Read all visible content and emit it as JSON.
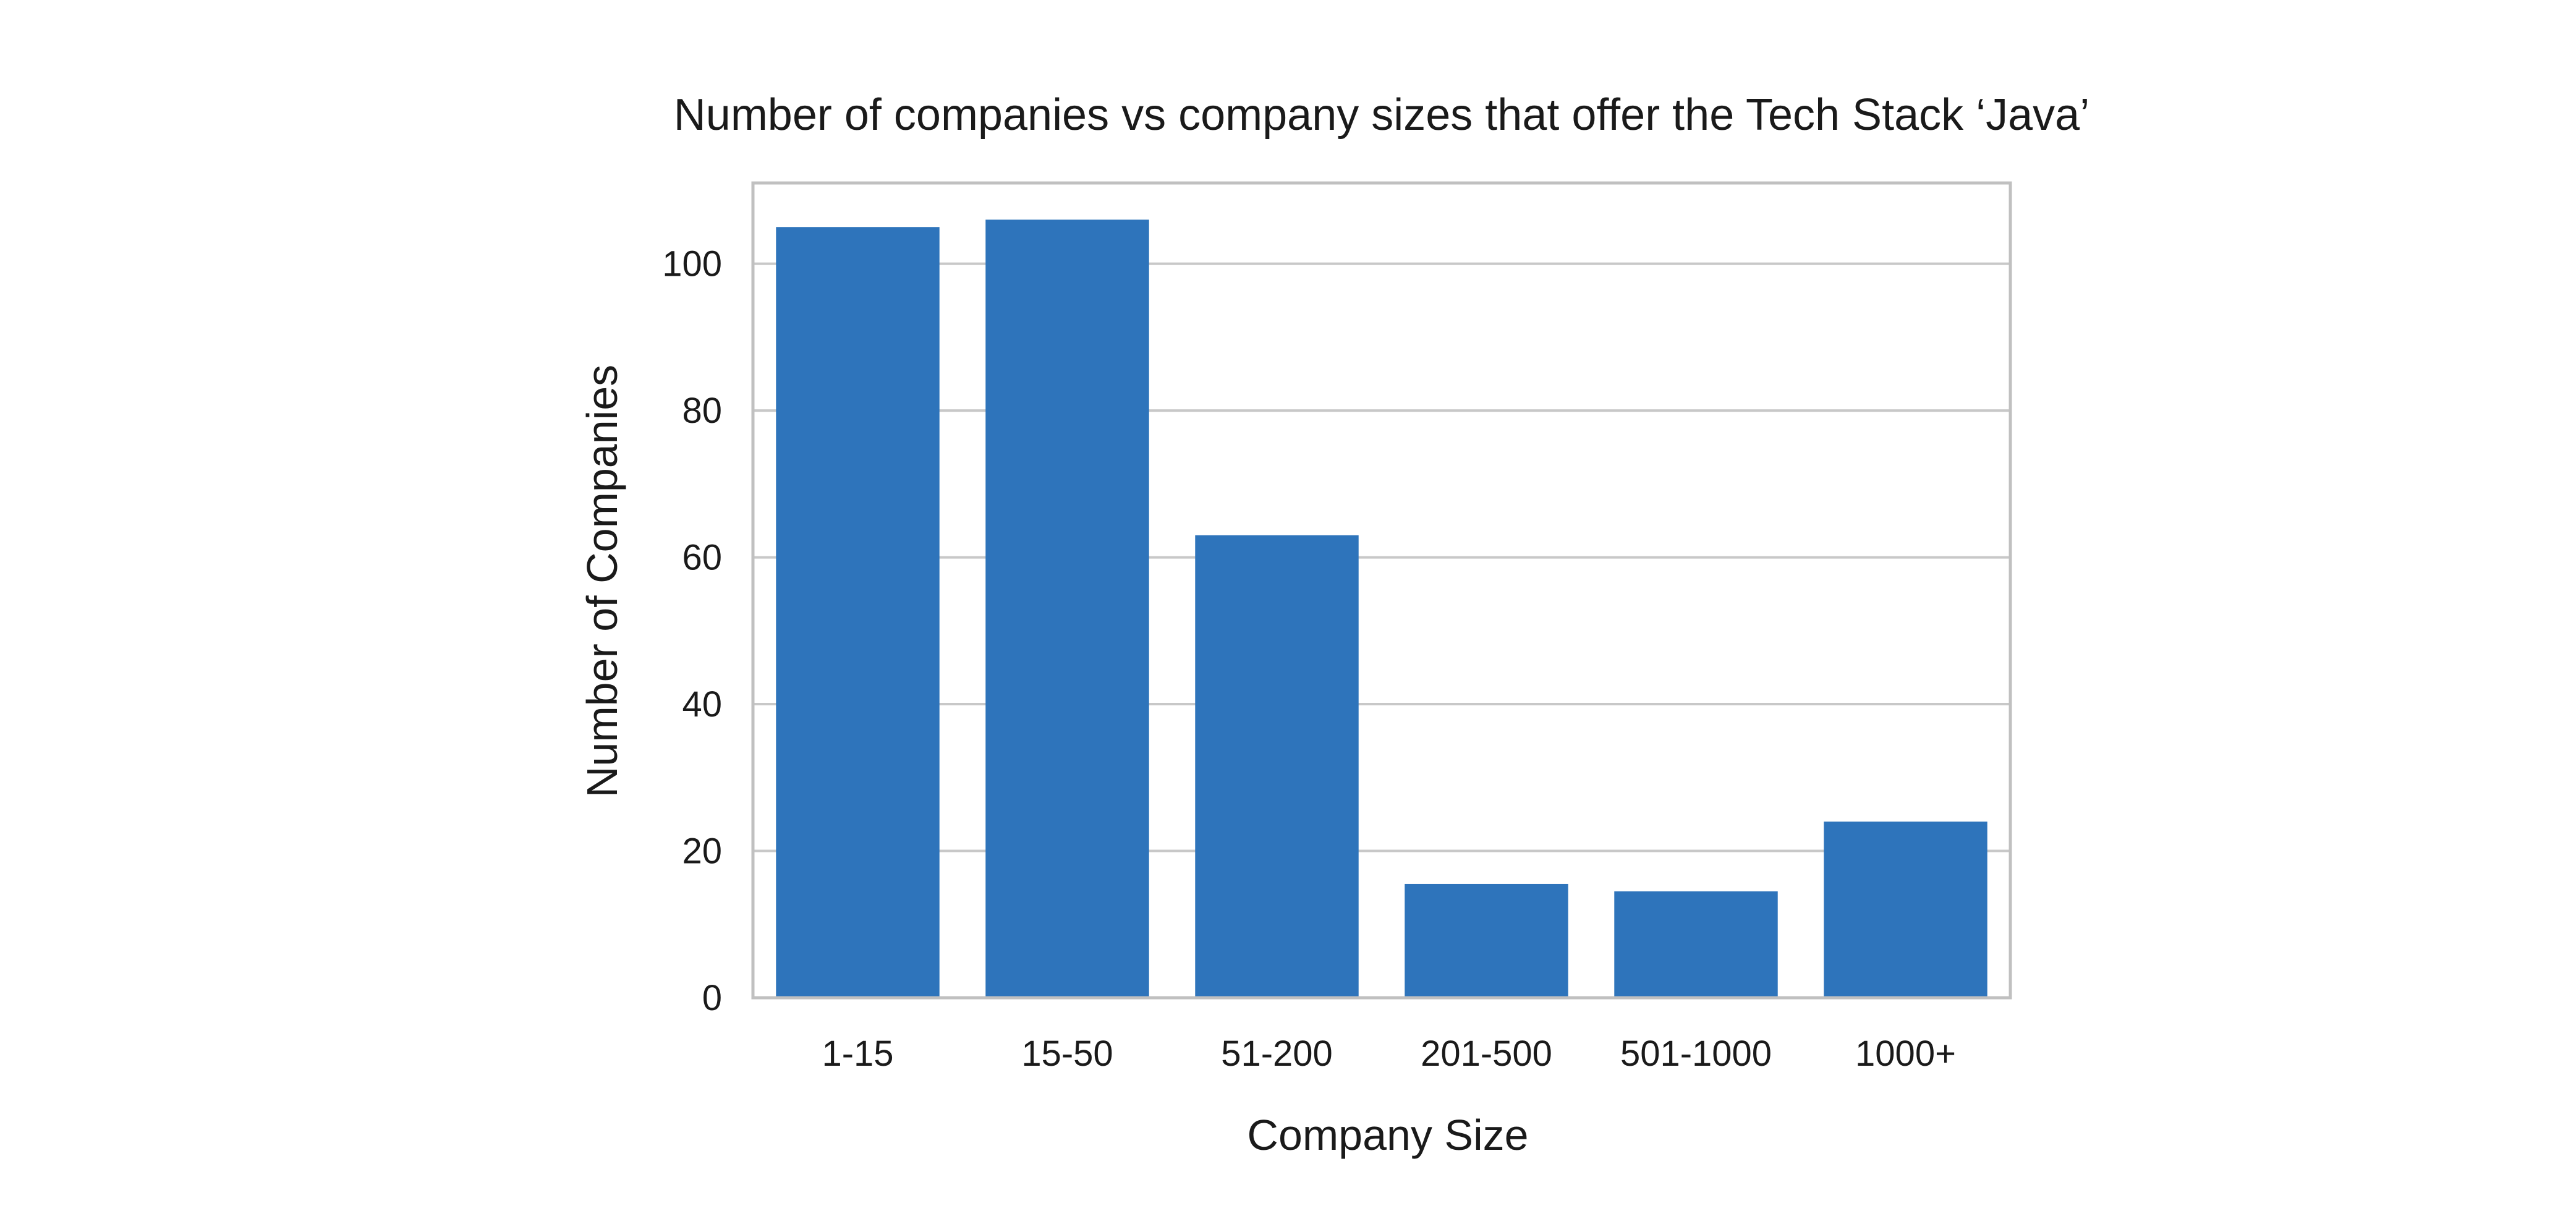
{
  "chart_data": {
    "type": "bar",
    "title": "Number of companies vs company sizes that offer the Tech Stack ‘Java’",
    "xlabel": "Company Size",
    "ylabel": "Number of Companies",
    "categories": [
      "1-15",
      "15-50",
      "51-200",
      "201-500",
      "501-1000",
      "1000+"
    ],
    "values": [
      105,
      106,
      63,
      15.5,
      14.5,
      24
    ],
    "ylim": [
      0,
      111
    ],
    "yticks": [
      0,
      20,
      40,
      60,
      80,
      100
    ],
    "ytick_labels": [
      "0",
      "20",
      "40",
      "60",
      "80",
      "100"
    ],
    "grid": "horizontal",
    "bar_color": "#2e74bb"
  }
}
